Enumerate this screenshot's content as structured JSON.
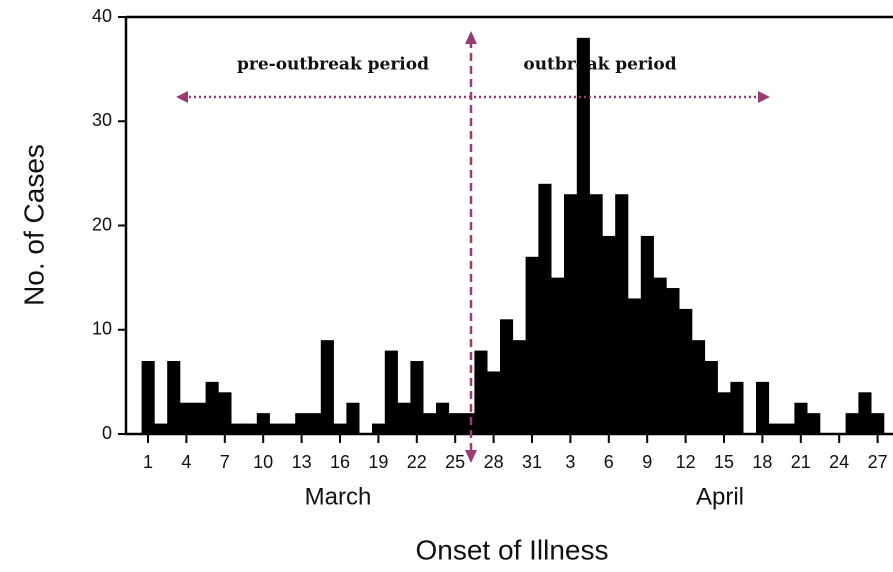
{
  "chart_data": {
    "type": "bar",
    "y_label": "No. of Cases",
    "x_label": "Onset of Illness",
    "month_labels": [
      "March",
      "April"
    ],
    "annotations": [
      "pre-outbreak period",
      "outbreak period"
    ],
    "categories": [
      "1",
      null,
      null,
      "4",
      null,
      null,
      "7",
      null,
      null,
      "10",
      null,
      null,
      "13",
      null,
      null,
      "16",
      null,
      null,
      "19",
      null,
      null,
      "22",
      null,
      null,
      "25",
      null,
      null,
      "28",
      null,
      null,
      "31",
      null,
      null,
      "3",
      null,
      null,
      "6",
      null,
      null,
      "9",
      null,
      null,
      "12",
      null,
      null,
      "15",
      null,
      null,
      "18",
      null,
      null,
      "21",
      null,
      null,
      "24",
      null,
      null,
      "27",
      null
    ],
    "values": [
      7,
      1,
      7,
      3,
      3,
      5,
      4,
      1,
      1,
      2,
      1,
      1,
      2,
      2,
      9,
      1,
      3,
      0,
      1,
      8,
      3,
      7,
      2,
      3,
      2,
      2,
      8,
      6,
      11,
      9,
      17,
      24,
      15,
      23,
      38,
      23,
      19,
      23,
      13,
      19,
      15,
      14,
      12,
      9,
      7,
      4,
      5,
      0,
      5,
      1,
      1,
      3,
      2,
      0,
      0,
      2,
      4,
      2,
      0
    ],
    "color": "#000000",
    "ylim": [
      0,
      40
    ],
    "yticks": [
      0,
      10,
      20,
      30,
      40
    ],
    "grid": false
  }
}
